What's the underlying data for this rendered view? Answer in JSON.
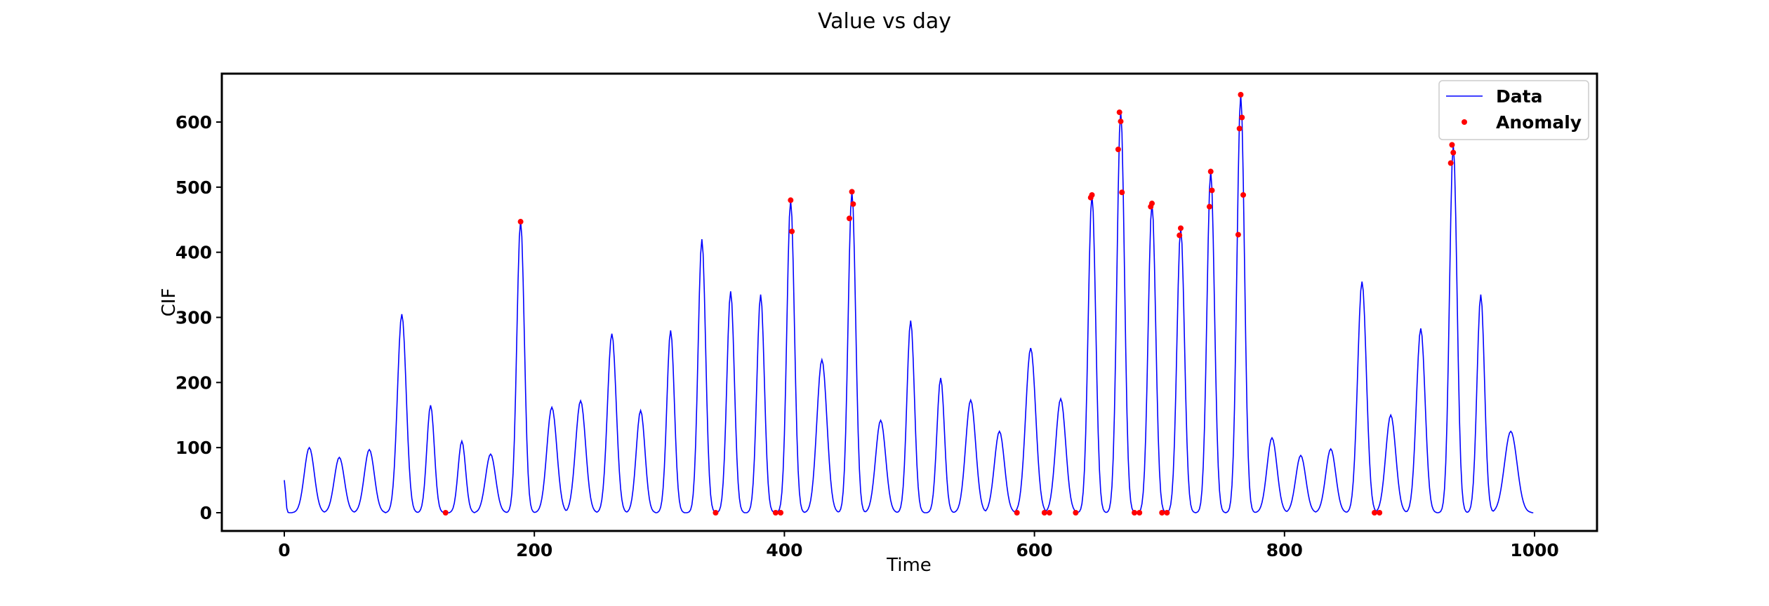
{
  "chart_data": {
    "type": "line",
    "title": "Value vs day",
    "xlabel": "Time",
    "ylabel": "CIF",
    "xlim": [
      -50,
      1050
    ],
    "ylim": [
      -32,
      675
    ],
    "xticks": [
      0,
      200,
      400,
      600,
      800,
      1000
    ],
    "yticks": [
      0,
      100,
      200,
      300,
      400,
      500,
      600
    ],
    "grid": false,
    "legend_position": "top-right",
    "colors": {
      "data": "#0000ff",
      "anomaly": "#ff0000"
    },
    "series": [
      {
        "name": "Data",
        "kind": "line",
        "peaks": [
          [
            0,
            50,
            1
          ],
          [
            20,
            100,
            4
          ],
          [
            44,
            85,
            4
          ],
          [
            68,
            97,
            4
          ],
          [
            94,
            305,
            3.5
          ],
          [
            117,
            165,
            3
          ],
          [
            142,
            110,
            3
          ],
          [
            165,
            90,
            4
          ],
          [
            189,
            448,
            3
          ],
          [
            214,
            162,
            4
          ],
          [
            237,
            172,
            4
          ],
          [
            262,
            275,
            3.5
          ],
          [
            285,
            157,
            3.5
          ],
          [
            309,
            280,
            3
          ],
          [
            334,
            420,
            3
          ],
          [
            357,
            340,
            3
          ],
          [
            381,
            335,
            3
          ],
          [
            405,
            480,
            3
          ],
          [
            430,
            235,
            4
          ],
          [
            454,
            493,
            3
          ],
          [
            477,
            142,
            4
          ],
          [
            501,
            295,
            3
          ],
          [
            525,
            207,
            3
          ],
          [
            549,
            173,
            4
          ],
          [
            572,
            125,
            4
          ],
          [
            597,
            253,
            4
          ],
          [
            621,
            175,
            4
          ],
          [
            646,
            488,
            3
          ],
          [
            669,
            617,
            3
          ],
          [
            694,
            475,
            3
          ],
          [
            717,
            437,
            3
          ],
          [
            741,
            525,
            3
          ],
          [
            765,
            642,
            3
          ],
          [
            790,
            115,
            4
          ],
          [
            813,
            88,
            4
          ],
          [
            837,
            98,
            4
          ],
          [
            862,
            355,
            3.5
          ],
          [
            885,
            150,
            4
          ],
          [
            909,
            283,
            3.5
          ],
          [
            935,
            565,
            3
          ],
          [
            957,
            335,
            3
          ],
          [
            981,
            125,
            5
          ]
        ],
        "x_range": [
          0,
          999
        ]
      },
      {
        "name": "Anomaly",
        "kind": "scatter",
        "points": [
          [
            129,
            0
          ],
          [
            189,
            447
          ],
          [
            345,
            0
          ],
          [
            393,
            0
          ],
          [
            397,
            0
          ],
          [
            405,
            480
          ],
          [
            406,
            432
          ],
          [
            452,
            452
          ],
          [
            454,
            493
          ],
          [
            455,
            474
          ],
          [
            586,
            0
          ],
          [
            608,
            0
          ],
          [
            612,
            0
          ],
          [
            633,
            0
          ],
          [
            645,
            484
          ],
          [
            646,
            488
          ],
          [
            667,
            558
          ],
          [
            668,
            615
          ],
          [
            669,
            601
          ],
          [
            670,
            492
          ],
          [
            680,
            0
          ],
          [
            684,
            0
          ],
          [
            693,
            470
          ],
          [
            694,
            475
          ],
          [
            702,
            0
          ],
          [
            706,
            0
          ],
          [
            716,
            426
          ],
          [
            717,
            437
          ],
          [
            740,
            470
          ],
          [
            741,
            524
          ],
          [
            742,
            495
          ],
          [
            763,
            427
          ],
          [
            764,
            590
          ],
          [
            765,
            642
          ],
          [
            766,
            607
          ],
          [
            767,
            488
          ],
          [
            872,
            0
          ],
          [
            876,
            0
          ],
          [
            933,
            537
          ],
          [
            934,
            565
          ],
          [
            935,
            553
          ]
        ]
      }
    ]
  }
}
